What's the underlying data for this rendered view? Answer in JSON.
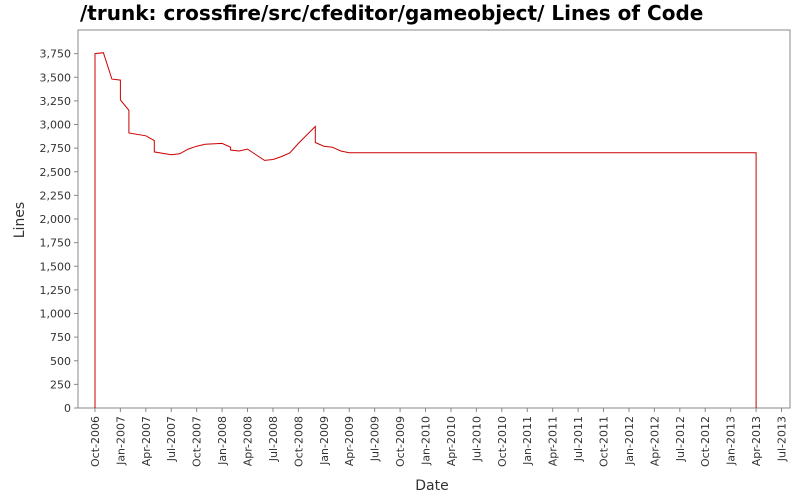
{
  "chart_data": {
    "type": "line",
    "title": "/trunk: crossfire/src/cfeditor/gameobject/ Lines of Code",
    "xlabel": "Date",
    "ylabel": "Lines",
    "x": [
      "2006-10",
      "2006-10",
      "2006-10",
      "2006-11",
      "2006-12",
      "2007-01",
      "2007-01",
      "2007-02",
      "2007-02",
      "2007-04",
      "2007-05",
      "2007-05",
      "2007-07",
      "2007-08",
      "2007-09",
      "2007-10",
      "2007-11",
      "2008-01",
      "2008-02",
      "2008-02",
      "2008-03",
      "2008-04",
      "2008-06",
      "2008-07",
      "2008-08",
      "2008-09",
      "2008-10",
      "2008-12",
      "2008-12",
      "2009-01",
      "2009-02",
      "2009-03",
      "2009-04",
      "2013-04",
      "2013-04"
    ],
    "series": [
      {
        "name": "Lines",
        "color": "#cc0000",
        "values": [
          0,
          3410,
          3750,
          3760,
          3480,
          3470,
          3260,
          3150,
          2910,
          2880,
          2830,
          2710,
          2680,
          2690,
          2740,
          2770,
          2790,
          2800,
          2760,
          2730,
          2720,
          2740,
          2620,
          2630,
          2660,
          2700,
          2800,
          2980,
          2810,
          2770,
          2760,
          2720,
          2700,
          2700,
          0
        ]
      }
    ],
    "xlim": [
      "2006-08",
      "2013-08"
    ],
    "xticks": [
      {
        "value": "2006-10",
        "label": "Oct-2006"
      },
      {
        "value": "2007-01",
        "label": "Jan-2007"
      },
      {
        "value": "2007-04",
        "label": "Apr-2007"
      },
      {
        "value": "2007-07",
        "label": "Jul-2007"
      },
      {
        "value": "2007-10",
        "label": "Oct-2007"
      },
      {
        "value": "2008-01",
        "label": "Jan-2008"
      },
      {
        "value": "2008-04",
        "label": "Apr-2008"
      },
      {
        "value": "2008-07",
        "label": "Jul-2008"
      },
      {
        "value": "2008-10",
        "label": "Oct-2008"
      },
      {
        "value": "2009-01",
        "label": "Jan-2009"
      },
      {
        "value": "2009-04",
        "label": "Apr-2009"
      },
      {
        "value": "2009-07",
        "label": "Jul-2009"
      },
      {
        "value": "2009-10",
        "label": "Oct-2009"
      },
      {
        "value": "2010-01",
        "label": "Jan-2010"
      },
      {
        "value": "2010-04",
        "label": "Apr-2010"
      },
      {
        "value": "2010-07",
        "label": "Jul-2010"
      },
      {
        "value": "2010-10",
        "label": "Oct-2010"
      },
      {
        "value": "2011-01",
        "label": "Jan-2011"
      },
      {
        "value": "2011-04",
        "label": "Apr-2011"
      },
      {
        "value": "2011-07",
        "label": "Jul-2011"
      },
      {
        "value": "2011-10",
        "label": "Oct-2011"
      },
      {
        "value": "2012-01",
        "label": "Jan-2012"
      },
      {
        "value": "2012-04",
        "label": "Apr-2012"
      },
      {
        "value": "2012-07",
        "label": "Jul-2012"
      },
      {
        "value": "2012-10",
        "label": "Oct-2012"
      },
      {
        "value": "2013-01",
        "label": "Jan-2013"
      },
      {
        "value": "2013-04",
        "label": "Apr-2013"
      },
      {
        "value": "2013-07",
        "label": "Jul-2013"
      }
    ],
    "ylim": [
      0,
      4000
    ],
    "yticks": [
      0,
      250,
      500,
      750,
      {
        "value": 1000,
        "label": "1,000"
      },
      {
        "value": 1250,
        "label": "1,250"
      },
      {
        "value": 1500,
        "label": "1,500"
      },
      {
        "value": 1750,
        "label": "1,750"
      },
      {
        "value": 2000,
        "label": "2,000"
      },
      {
        "value": 2250,
        "label": "2,250"
      },
      {
        "value": 2500,
        "label": "2,500"
      },
      {
        "value": 2750,
        "label": "2,750"
      },
      {
        "value": 3000,
        "label": "3,000"
      },
      {
        "value": 3250,
        "label": "3,250"
      },
      {
        "value": 3500,
        "label": "3,500"
      },
      {
        "value": 3750,
        "label": "3,750"
      }
    ],
    "grid": false
  }
}
